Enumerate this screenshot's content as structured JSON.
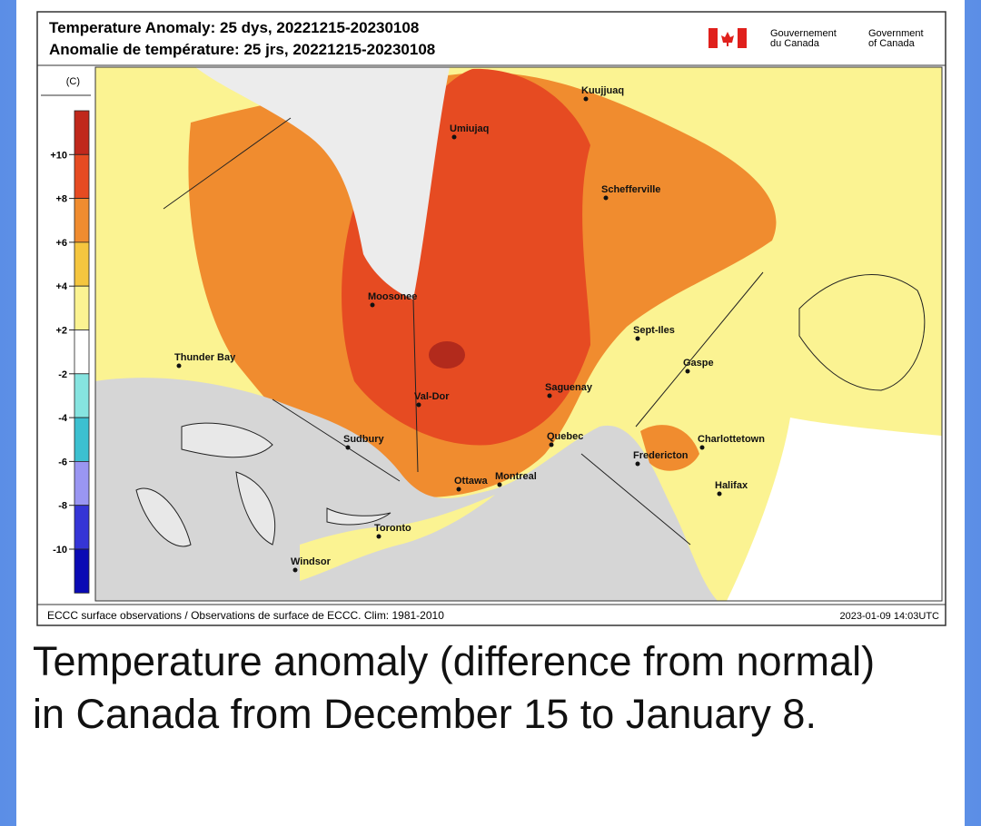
{
  "header": {
    "title_en": "Temperature Anomaly: 25 dys, 20221215-20230108",
    "title_fr": "Anomalie de température: 25 jrs, 20221215-20230108",
    "logo_fr": [
      "Gouvernement",
      "du Canada"
    ],
    "logo_en": [
      "Government",
      "of Canada"
    ]
  },
  "legend": {
    "unit": "(C)",
    "bands": [
      "#c0281c",
      "#e64b22",
      "#f08c2f",
      "#f5c63f",
      "#fbf392",
      "#ffffff",
      "#86e4e0",
      "#3cc0d0",
      "#9a96f2",
      "#3535d6",
      "#0a0ab4"
    ],
    "labels": [
      "+10",
      "+8",
      "+6",
      "+4",
      "+2",
      "-2",
      "-4",
      "-6",
      "-8",
      "-10"
    ]
  },
  "cities": [
    "Kuujjuaq",
    "Umiujaq",
    "Schefferville",
    "Moosonee",
    "Sept-Iles",
    "Thunder Bay",
    "Gaspe",
    "Val-Dor",
    "Saguenay",
    "Sudbury",
    "Quebec",
    "Charlottetown",
    "Fredericton",
    "Montreal",
    "Ottawa",
    "Halifax",
    "Toronto",
    "Windsor"
  ],
  "footer": {
    "source": "ECCC surface observations / Observations de surface de ECCC. Clim: 1981-2010",
    "timestamp": "2023-01-09 14:03UTC"
  },
  "caption": "Temperature anomaly (difference from normal) in Canada from December 15 to January 8."
}
